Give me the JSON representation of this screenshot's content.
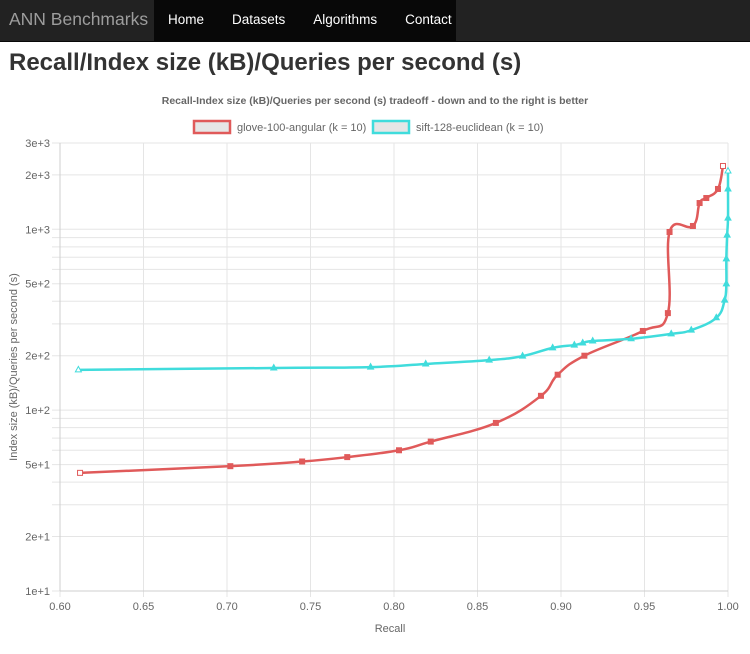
{
  "navbar": {
    "brand": "ANN Benchmarks",
    "links": [
      {
        "label": "Home"
      },
      {
        "label": "Datasets"
      },
      {
        "label": "Algorithms"
      },
      {
        "label": "Contact"
      }
    ]
  },
  "page": {
    "title": "Recall/Index size (kB)/Queries per second (s)"
  },
  "colors": {
    "series_red": "#e05a5a",
    "series_cyan": "#40dcdc",
    "legend_fill": "#e6e6e6",
    "grid": "#e5e5e5"
  },
  "chart_data": {
    "type": "line",
    "title": "Recall-Index size (kB)/Queries per second (s) tradeoff - down and to the right is better",
    "xlabel": "Recall",
    "ylabel": "Index size (kB)/Queries per second (s)",
    "xlim": [
      0.6,
      1.0
    ],
    "ylim": [
      10,
      3000
    ],
    "yscale": "log",
    "xticks": [
      "0.60",
      "0.65",
      "0.70",
      "0.75",
      "0.80",
      "0.85",
      "0.90",
      "0.95",
      "1.00"
    ],
    "yticks": [
      {
        "label": "3e+3",
        "value": 3000
      },
      {
        "label": "2e+3",
        "value": 2000
      },
      {
        "label": "1e+3",
        "value": 1000
      },
      {
        "label": "5e+2",
        "value": 500
      },
      {
        "label": "2e+2",
        "value": 200
      },
      {
        "label": "1e+2",
        "value": 100
      },
      {
        "label": "5e+1",
        "value": 50
      },
      {
        "label": "2e+1",
        "value": 20
      },
      {
        "label": "1e+1",
        "value": 10
      }
    ],
    "grid": true,
    "legend_position": "top",
    "series": [
      {
        "name": "glove-100-angular (k = 10)",
        "color": "#e05a5a",
        "marker": "square",
        "points": [
          [
            0.612,
            45
          ],
          [
            0.702,
            49
          ],
          [
            0.745,
            52
          ],
          [
            0.772,
            55
          ],
          [
            0.803,
            60
          ],
          [
            0.822,
            67
          ],
          [
            0.861,
            85
          ],
          [
            0.888,
            120
          ],
          [
            0.898,
            157
          ],
          [
            0.914,
            200
          ],
          [
            0.949,
            274
          ],
          [
            0.964,
            344
          ],
          [
            0.965,
            966
          ],
          [
            0.979,
            1043
          ],
          [
            0.983,
            1397
          ],
          [
            0.987,
            1489
          ],
          [
            0.994,
            1671
          ],
          [
            0.997,
            2239
          ]
        ]
      },
      {
        "name": "sift-128-euclidean (k = 10)",
        "color": "#40dcdc",
        "marker": "triangle",
        "points": [
          [
            0.611,
            167
          ],
          [
            0.728,
            171
          ],
          [
            0.786,
            173
          ],
          [
            0.819,
            180
          ],
          [
            0.857,
            189
          ],
          [
            0.877,
            199
          ],
          [
            0.895,
            221
          ],
          [
            0.908,
            229
          ],
          [
            0.913,
            235
          ],
          [
            0.919,
            241
          ],
          [
            0.942,
            248
          ],
          [
            0.966,
            264
          ],
          [
            0.978,
            277
          ],
          [
            0.993,
            324
          ],
          [
            0.998,
            406
          ],
          [
            0.999,
            499
          ],
          [
            0.999,
            686
          ],
          [
            0.9995,
            929
          ],
          [
            1.0,
            1153
          ],
          [
            1.0,
            1671
          ],
          [
            1.0,
            2099
          ]
        ]
      }
    ]
  }
}
